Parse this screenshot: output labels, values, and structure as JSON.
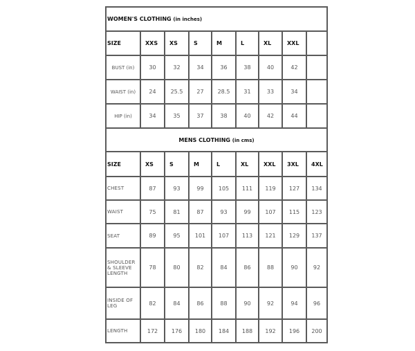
{
  "women": {
    "title": "WOMEN'S CLOTHING",
    "unit": "(in inches)",
    "size_label": "SIZE",
    "sizes": [
      "XXS",
      "XS",
      "S",
      "M",
      "L",
      "XL",
      "XXL",
      ""
    ],
    "rows": [
      {
        "label": "BUST (in)",
        "values": [
          "30",
          "32",
          "34",
          "36",
          "38",
          "40",
          "42",
          ""
        ]
      },
      {
        "label": "WAIST (in)",
        "values": [
          "24",
          "25.5",
          "27",
          "28.5",
          "31",
          "33",
          "34",
          ""
        ]
      },
      {
        "label": "HIP (in)",
        "values": [
          "34",
          "35",
          "37",
          "38",
          "40",
          "42",
          "44",
          ""
        ]
      }
    ]
  },
  "men": {
    "title": "MENS CLOTHING",
    "unit": "(in cms)",
    "size_label": "SIZE",
    "sizes": [
      "XS",
      "S",
      "M",
      "L",
      "XL",
      "XXL",
      "3XL",
      "4XL"
    ],
    "rows": [
      {
        "label": "CHEST",
        "values": [
          "87",
          "93",
          "99",
          "105",
          "111",
          "119",
          "127",
          "134"
        ]
      },
      {
        "label": "WAIST",
        "values": [
          "75",
          "81",
          "87",
          "93",
          "99",
          "107",
          "115",
          "123"
        ]
      },
      {
        "label": "SEAT",
        "values": [
          "89",
          "95",
          "101",
          "107",
          "113",
          "121",
          "129",
          "137"
        ]
      },
      {
        "label": "SHOULDER & SLEEVE LENGTH",
        "values": [
          "78",
          "80",
          "82",
          "84",
          "86",
          "88",
          "90",
          "92"
        ]
      },
      {
        "label": "INSIDE OF LEG",
        "values": [
          "82",
          "84",
          "86",
          "88",
          "90",
          "92",
          "94",
          "96"
        ]
      },
      {
        "label": "LENGTH",
        "values": [
          "172",
          "176",
          "180",
          "184",
          "188",
          "192",
          "196",
          "200"
        ]
      }
    ]
  }
}
